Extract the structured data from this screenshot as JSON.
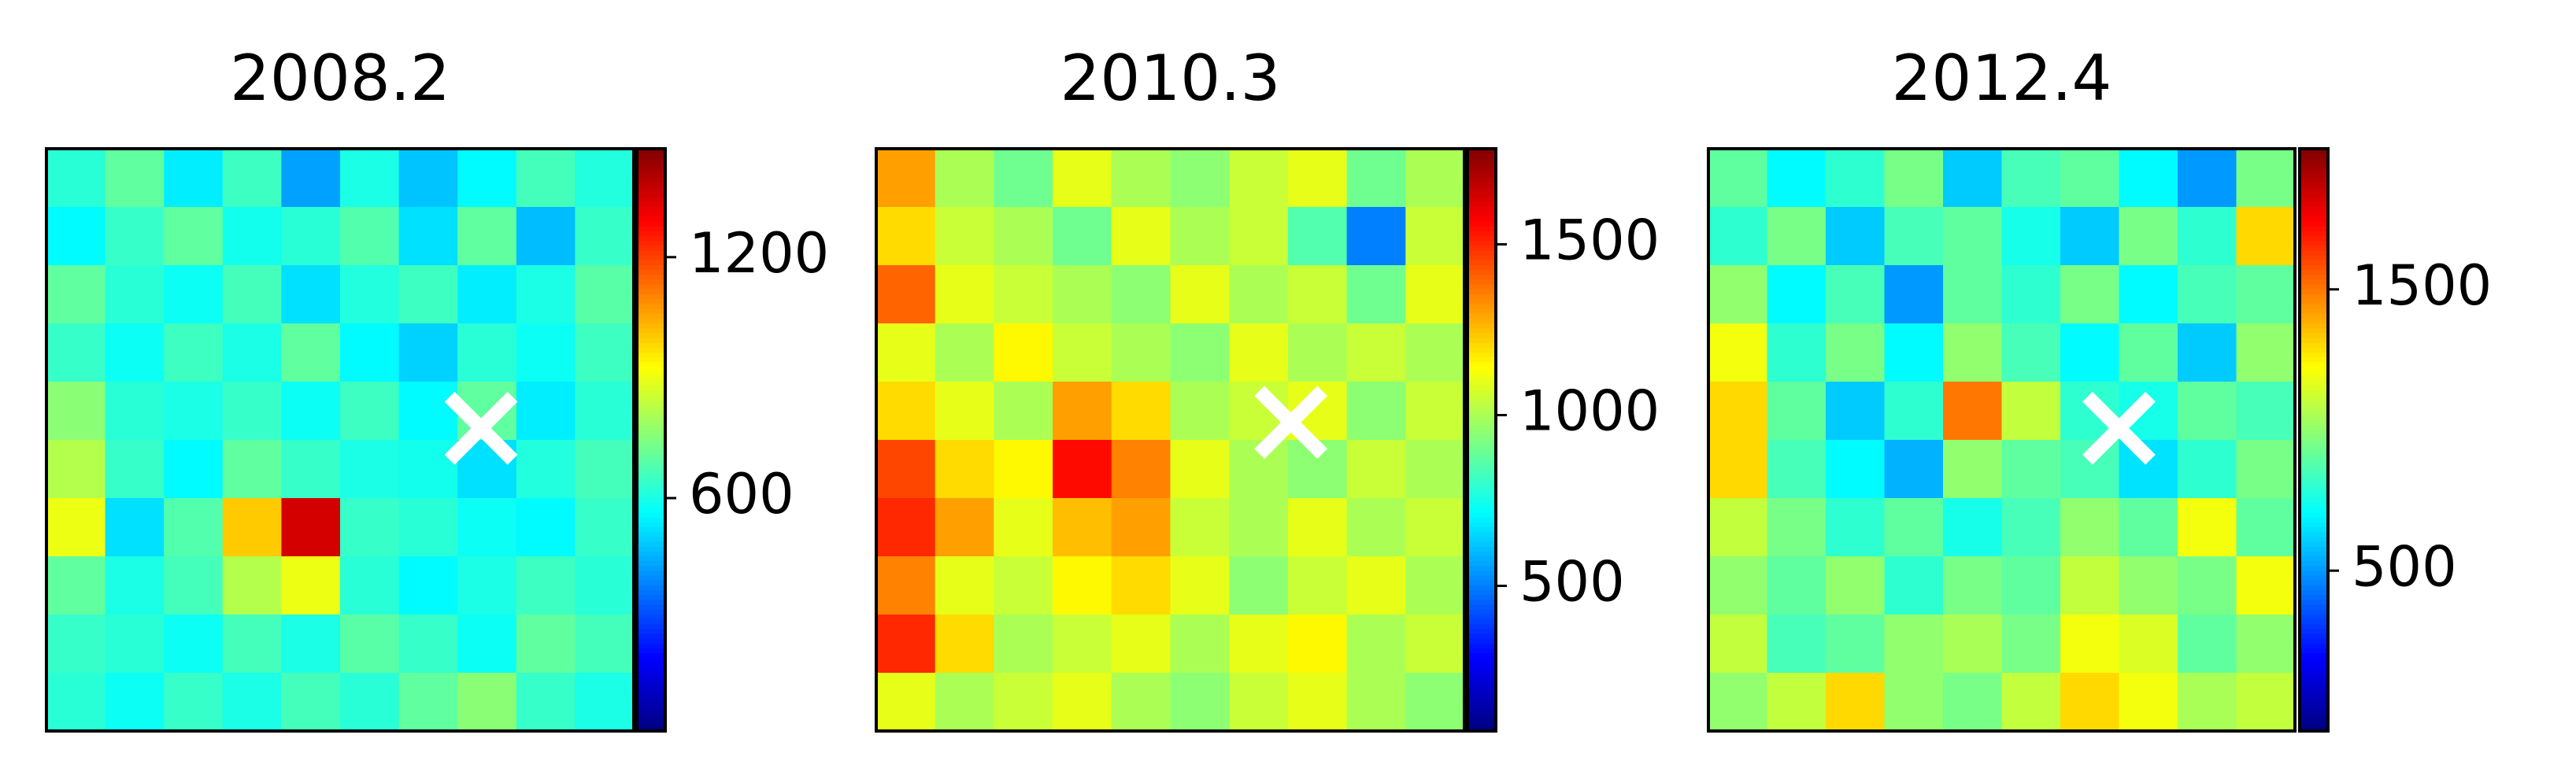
{
  "chart_data": [
    {
      "type": "heatmap",
      "title": "2008.2",
      "colormap": "jet",
      "xlim": [
        0,
        10
      ],
      "ylim": [
        10,
        0
      ],
      "clim": [
        20,
        1470
      ],
      "cticks": [
        600,
        1200
      ],
      "marker": {
        "x": 7.4,
        "y": 4.8,
        "color": "#ffffff"
      },
      "z": [
        [
          620,
          700,
          540,
          650,
          430,
          600,
          480,
          560,
          660,
          610
        ],
        [
          560,
          640,
          700,
          590,
          620,
          680,
          520,
          700,
          470,
          640
        ],
        [
          700,
          620,
          580,
          660,
          520,
          610,
          650,
          540,
          600,
          690
        ],
        [
          640,
          580,
          650,
          600,
          700,
          560,
          500,
          620,
          580,
          650
        ],
        [
          760,
          620,
          600,
          640,
          580,
          650,
          560,
          700,
          540,
          620
        ],
        [
          820,
          640,
          560,
          700,
          640,
          600,
          590,
          520,
          610,
          660
        ],
        [
          900,
          520,
          680,
          1000,
          1350,
          640,
          620,
          580,
          560,
          640
        ],
        [
          700,
          600,
          660,
          820,
          900,
          620,
          560,
          600,
          650,
          620
        ],
        [
          640,
          620,
          580,
          660,
          600,
          690,
          640,
          580,
          700,
          660
        ],
        [
          620,
          580,
          640,
          600,
          660,
          620,
          700,
          760,
          640,
          600
        ]
      ]
    },
    {
      "type": "heatmap",
      "title": "2010.3",
      "colormap": "jet",
      "xlim": [
        0,
        10
      ],
      "ylim": [
        10,
        0
      ],
      "clim": [
        75,
        1780
      ],
      "cticks": [
        500,
        1000,
        1500
      ],
      "marker": {
        "x": 7.05,
        "y": 4.7,
        "color": "#ffffff"
      },
      "z": [
        [
          1300,
          1000,
          900,
          1100,
          1000,
          950,
          1050,
          1100,
          900,
          1000
        ],
        [
          1200,
          1050,
          1000,
          900,
          1100,
          1000,
          1050,
          850,
          500,
          1050
        ],
        [
          1400,
          1100,
          1050,
          1000,
          950,
          1100,
          1000,
          1050,
          900,
          1100
        ],
        [
          1100,
          1000,
          1150,
          1050,
          1000,
          950,
          1100,
          1000,
          1050,
          1000
        ],
        [
          1200,
          1100,
          1000,
          1300,
          1200,
          1000,
          1050,
          1100,
          950,
          1050
        ],
        [
          1450,
          1200,
          1150,
          1550,
          1350,
          1100,
          1000,
          950,
          1050,
          1000
        ],
        [
          1500,
          1300,
          1100,
          1250,
          1300,
          1050,
          1000,
          1100,
          1000,
          1050
        ],
        [
          1350,
          1100,
          1050,
          1150,
          1200,
          1100,
          950,
          1050,
          1100,
          1000
        ],
        [
          1500,
          1200,
          1000,
          1050,
          1100,
          1000,
          1100,
          1150,
          1000,
          1050
        ],
        [
          1100,
          1000,
          1050,
          1100,
          1000,
          950,
          1050,
          1100,
          1000,
          950
        ]
      ]
    },
    {
      "type": "heatmap",
      "title": "2012.4",
      "colormap": "jet",
      "xlim": [
        0,
        10
      ],
      "ylim": [
        10,
        0
      ],
      "clim": [
        -70,
        2000
      ],
      "cticks": [
        500,
        1500
      ],
      "marker": {
        "x": 7.0,
        "y": 4.8,
        "color": "#ffffff"
      },
      "z": [
        [
          900,
          700,
          800,
          950,
          600,
          850,
          900,
          700,
          500,
          950
        ],
        [
          800,
          950,
          600,
          850,
          900,
          750,
          600,
          950,
          800,
          1300
        ],
        [
          1000,
          700,
          850,
          500,
          900,
          800,
          950,
          700,
          850,
          900
        ],
        [
          1200,
          800,
          950,
          700,
          1000,
          850,
          700,
          900,
          600,
          1000
        ],
        [
          1300,
          900,
          600,
          800,
          1500,
          1100,
          800,
          750,
          900,
          850
        ],
        [
          1300,
          850,
          700,
          550,
          1000,
          900,
          850,
          650,
          800,
          950
        ],
        [
          1100,
          950,
          800,
          900,
          750,
          850,
          1000,
          900,
          1200,
          900
        ],
        [
          1000,
          900,
          1000,
          800,
          950,
          900,
          1100,
          1000,
          950,
          1200
        ],
        [
          1100,
          850,
          900,
          1000,
          1050,
          950,
          1200,
          1150,
          900,
          1000
        ],
        [
          1000,
          1100,
          1300,
          1000,
          950,
          1100,
          1300,
          1200,
          1050,
          1100
        ]
      ]
    }
  ]
}
